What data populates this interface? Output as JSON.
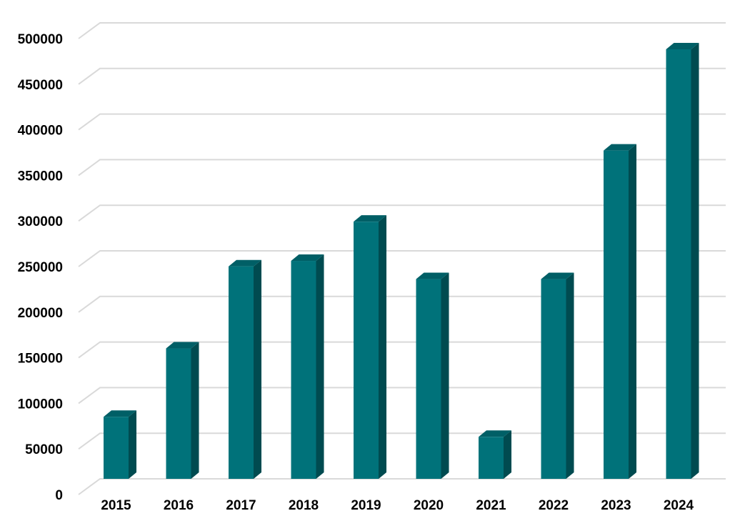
{
  "chart_data": {
    "type": "bar",
    "title": "",
    "xlabel": "",
    "ylabel": "",
    "categories": [
      "2015",
      "2016",
      "2017",
      "2018",
      "2019",
      "2020",
      "2021",
      "2022",
      "2023",
      "2024"
    ],
    "values": [
      68000,
      143000,
      233000,
      239000,
      282000,
      219000,
      46000,
      219000,
      360000,
      471000
    ],
    "ylim": [
      0,
      500000
    ],
    "yticks": [
      "0",
      "50000",
      "100000",
      "150000",
      "200000",
      "250000",
      "300000",
      "350000",
      "400000",
      "450000",
      "500000"
    ],
    "grid": true,
    "style": "3d-column",
    "colors": {
      "bar_front": "#00727a",
      "bar_side": "#004b50",
      "bar_top": "#005f66",
      "grid": "#d9d9d9"
    }
  }
}
